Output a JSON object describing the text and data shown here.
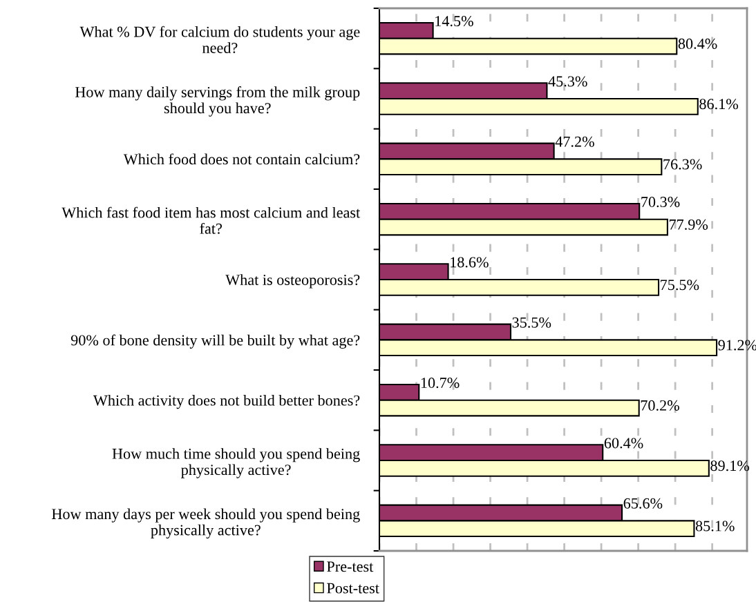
{
  "chart_data": {
    "type": "bar",
    "orientation": "horizontal",
    "categories": [
      "What % DV for calcium do students your age\nneed?",
      "How many daily servings from the milk group\nshould you have?",
      "Which food does not contain calcium?",
      "Which fast food item has most calcium and least\nfat?",
      "What is osteoporosis?",
      "90% of bone density will be built by what age?",
      "Which activity does not build better bones?",
      "How much time should you spend being\nphysically active?",
      "How many days per week should you spend being\nphysically active?"
    ],
    "series": [
      {
        "name": "Pre-test",
        "color": "#993366",
        "values": [
          14.5,
          45.3,
          47.2,
          70.3,
          18.6,
          35.5,
          10.7,
          60.4,
          65.6
        ],
        "value_labels": [
          "14.5%",
          "45.3%",
          "47.2%",
          "70.3%",
          "18.6%",
          "35.5%",
          "10.7%",
          "60.4%",
          "65.6%"
        ]
      },
      {
        "name": "Post-test",
        "color": "#ffffcc",
        "values": [
          80.4,
          86.1,
          76.3,
          77.9,
          75.5,
          91.2,
          70.2,
          89.1,
          85.1
        ],
        "value_labels": [
          "80.4%",
          "86.1%",
          "76.3%",
          "77.9%",
          "75.5%",
          "91.2%",
          "70.2%",
          "89.1%",
          "85.1%"
        ]
      }
    ],
    "tick_labels": "y",
    "grid": "x",
    "legend": "bottom"
  }
}
